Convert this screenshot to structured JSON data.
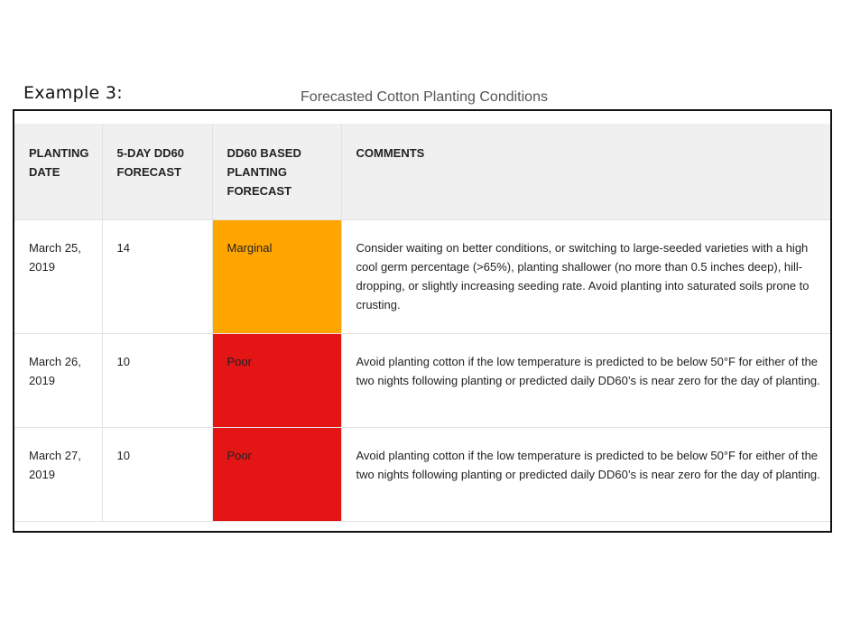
{
  "example_label": "Example 3:",
  "table_title": "Forecasted Cotton Planting Conditions",
  "colors": {
    "marginal": "#ffa500",
    "poor": "#e31515",
    "header_bg": "#f0f0f0"
  },
  "headers": {
    "planting_date": "PLANTING DATE",
    "forecast_5day": "5-DAY DD60 FORECAST",
    "dd60_based": "DD60 BASED PLANTING FORECAST",
    "comments": "COMMENTS"
  },
  "rows": [
    {
      "date": "March 25, 2019",
      "dd60": "14",
      "rating": "Marginal",
      "rating_color": "#ffa500",
      "comment": "Consider waiting on better conditions, or switching to large-seeded varieties with a high cool germ percentage (>65%), planting shallower (no more than 0.5 inches deep), hill-dropping, or slightly increasing seeding rate. Avoid planting into saturated soils prone to crusting."
    },
    {
      "date": "March 26, 2019",
      "dd60": "10",
      "rating": "Poor",
      "rating_color": "#e31515",
      "comment": "Avoid planting cotton if the low temperature is predicted to be below 50°F for either of the two nights following planting or predicted daily DD60’s is near zero for the day of planting."
    },
    {
      "date": "March 27, 2019",
      "dd60": "10",
      "rating": "Poor",
      "rating_color": "#e31515",
      "comment": "Avoid planting cotton if the low temperature is predicted to be below 50°F for either of the two nights following planting or predicted daily DD60’s is near zero for the day of planting."
    }
  ]
}
